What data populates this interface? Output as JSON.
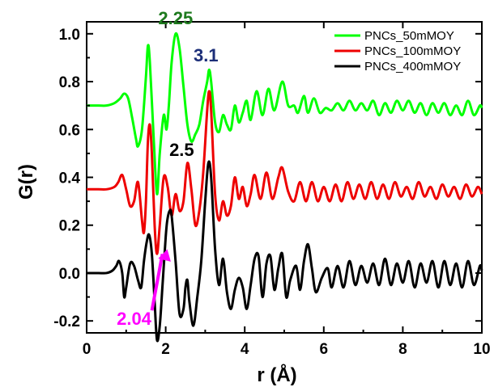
{
  "chart_data": {
    "type": "line",
    "xlabel": "r (Å)",
    "ylabel": "G(r)",
    "xlim": [
      0,
      10
    ],
    "ylim": [
      -0.25,
      1.05
    ],
    "xticks": [
      0,
      2,
      4,
      6,
      8,
      10
    ],
    "xtick_labels": [
      "0",
      "2",
      "4",
      "6",
      "8",
      "10"
    ],
    "yticks": [
      -0.2,
      0.0,
      0.2,
      0.4,
      0.6,
      0.8,
      1.0
    ],
    "ytick_labels": [
      "-0.2",
      "0.0",
      "0.2",
      "0.4",
      "0.6",
      "0.8",
      "1.0"
    ],
    "grid": false,
    "legend_position": "top-right",
    "series": [
      {
        "name": "PNCs_50mMOY",
        "color": "#00ff00",
        "points": [
          [
            0.0,
            0.7
          ],
          [
            0.3,
            0.7
          ],
          [
            0.5,
            0.7
          ],
          [
            0.7,
            0.71
          ],
          [
            0.85,
            0.73
          ],
          [
            0.95,
            0.75
          ],
          [
            1.05,
            0.73
          ],
          [
            1.15,
            0.65
          ],
          [
            1.25,
            0.56
          ],
          [
            1.3,
            0.53
          ],
          [
            1.4,
            0.6
          ],
          [
            1.5,
            0.82
          ],
          [
            1.55,
            0.95
          ],
          [
            1.6,
            0.88
          ],
          [
            1.7,
            0.55
          ],
          [
            1.78,
            0.33
          ],
          [
            1.85,
            0.5
          ],
          [
            1.95,
            0.66
          ],
          [
            2.02,
            0.6
          ],
          [
            2.08,
            0.7
          ],
          [
            2.15,
            0.88
          ],
          [
            2.25,
            1.0
          ],
          [
            2.35,
            0.94
          ],
          [
            2.45,
            0.78
          ],
          [
            2.55,
            0.62
          ],
          [
            2.65,
            0.55
          ],
          [
            2.75,
            0.58
          ],
          [
            2.85,
            0.62
          ],
          [
            2.95,
            0.72
          ],
          [
            3.05,
            0.8
          ],
          [
            3.1,
            0.85
          ],
          [
            3.15,
            0.8
          ],
          [
            3.25,
            0.63
          ],
          [
            3.35,
            0.59
          ],
          [
            3.45,
            0.66
          ],
          [
            3.55,
            0.62
          ],
          [
            3.65,
            0.6
          ],
          [
            3.75,
            0.7
          ],
          [
            3.85,
            0.63
          ],
          [
            3.95,
            0.67
          ],
          [
            4.05,
            0.72
          ],
          [
            4.15,
            0.64
          ],
          [
            4.3,
            0.76
          ],
          [
            4.45,
            0.66
          ],
          [
            4.6,
            0.77
          ],
          [
            4.75,
            0.68
          ],
          [
            4.95,
            0.8
          ],
          [
            5.1,
            0.7
          ],
          [
            5.25,
            0.7
          ],
          [
            5.35,
            0.67
          ],
          [
            5.5,
            0.74
          ],
          [
            5.6,
            0.67
          ],
          [
            5.75,
            0.73
          ],
          [
            5.9,
            0.67
          ],
          [
            6.05,
            0.69
          ],
          [
            6.2,
            0.68
          ],
          [
            6.35,
            0.71
          ],
          [
            6.5,
            0.68
          ],
          [
            6.65,
            0.72
          ],
          [
            6.8,
            0.68
          ],
          [
            6.95,
            0.71
          ],
          [
            7.1,
            0.68
          ],
          [
            7.25,
            0.72
          ],
          [
            7.4,
            0.66
          ],
          [
            7.55,
            0.71
          ],
          [
            7.7,
            0.67
          ],
          [
            7.85,
            0.72
          ],
          [
            8.0,
            0.68
          ],
          [
            8.15,
            0.72
          ],
          [
            8.3,
            0.67
          ],
          [
            8.45,
            0.71
          ],
          [
            8.6,
            0.66
          ],
          [
            8.75,
            0.71
          ],
          [
            8.9,
            0.67
          ],
          [
            9.05,
            0.71
          ],
          [
            9.2,
            0.66
          ],
          [
            9.35,
            0.7
          ],
          [
            9.5,
            0.66
          ],
          [
            9.65,
            0.72
          ],
          [
            9.8,
            0.66
          ],
          [
            9.95,
            0.7
          ],
          [
            10.0,
            0.69
          ]
        ]
      },
      {
        "name": "PNCs_100mMOY",
        "color": "#ee0000",
        "points": [
          [
            0.0,
            0.35
          ],
          [
            0.3,
            0.35
          ],
          [
            0.5,
            0.35
          ],
          [
            0.7,
            0.36
          ],
          [
            0.8,
            0.38
          ],
          [
            0.9,
            0.41
          ],
          [
            1.0,
            0.35
          ],
          [
            1.1,
            0.28
          ],
          [
            1.2,
            0.3
          ],
          [
            1.3,
            0.38
          ],
          [
            1.4,
            0.22
          ],
          [
            1.45,
            0.17
          ],
          [
            1.5,
            0.3
          ],
          [
            1.55,
            0.55
          ],
          [
            1.6,
            0.62
          ],
          [
            1.65,
            0.5
          ],
          [
            1.72,
            0.2
          ],
          [
            1.78,
            0.08
          ],
          [
            1.85,
            0.2
          ],
          [
            1.95,
            0.4
          ],
          [
            2.05,
            0.36
          ],
          [
            2.15,
            0.24
          ],
          [
            2.25,
            0.33
          ],
          [
            2.35,
            0.26
          ],
          [
            2.45,
            0.3
          ],
          [
            2.55,
            0.46
          ],
          [
            2.65,
            0.35
          ],
          [
            2.75,
            0.2
          ],
          [
            2.85,
            0.26
          ],
          [
            2.95,
            0.42
          ],
          [
            3.05,
            0.68
          ],
          [
            3.1,
            0.76
          ],
          [
            3.15,
            0.68
          ],
          [
            3.25,
            0.33
          ],
          [
            3.35,
            0.22
          ],
          [
            3.45,
            0.3
          ],
          [
            3.55,
            0.24
          ],
          [
            3.65,
            0.28
          ],
          [
            3.75,
            0.4
          ],
          [
            3.85,
            0.31
          ],
          [
            3.95,
            0.36
          ],
          [
            4.05,
            0.28
          ],
          [
            4.15,
            0.33
          ],
          [
            4.25,
            0.41
          ],
          [
            4.4,
            0.31
          ],
          [
            4.55,
            0.42
          ],
          [
            4.7,
            0.31
          ],
          [
            4.85,
            0.4
          ],
          [
            4.95,
            0.44
          ],
          [
            5.1,
            0.34
          ],
          [
            5.25,
            0.3
          ],
          [
            5.4,
            0.38
          ],
          [
            5.55,
            0.3
          ],
          [
            5.7,
            0.38
          ],
          [
            5.85,
            0.3
          ],
          [
            6.0,
            0.36
          ],
          [
            6.15,
            0.3
          ],
          [
            6.3,
            0.37
          ],
          [
            6.45,
            0.3
          ],
          [
            6.6,
            0.38
          ],
          [
            6.75,
            0.31
          ],
          [
            6.9,
            0.37
          ],
          [
            7.05,
            0.31
          ],
          [
            7.2,
            0.38
          ],
          [
            7.35,
            0.31
          ],
          [
            7.5,
            0.37
          ],
          [
            7.65,
            0.31
          ],
          [
            7.8,
            0.38
          ],
          [
            7.95,
            0.32
          ],
          [
            8.1,
            0.36
          ],
          [
            8.25,
            0.31
          ],
          [
            8.4,
            0.38
          ],
          [
            8.55,
            0.32
          ],
          [
            8.7,
            0.36
          ],
          [
            8.85,
            0.31
          ],
          [
            9.0,
            0.37
          ],
          [
            9.15,
            0.32
          ],
          [
            9.3,
            0.36
          ],
          [
            9.45,
            0.31
          ],
          [
            9.6,
            0.37
          ],
          [
            9.75,
            0.32
          ],
          [
            9.9,
            0.36
          ],
          [
            10.0,
            0.33
          ]
        ]
      },
      {
        "name": "PNCs_400mMOY",
        "color": "#000000",
        "points": [
          [
            0.0,
            0.0
          ],
          [
            0.3,
            0.0
          ],
          [
            0.5,
            0.0
          ],
          [
            0.65,
            0.01
          ],
          [
            0.75,
            0.03
          ],
          [
            0.82,
            0.05
          ],
          [
            0.9,
            0.0
          ],
          [
            0.95,
            -0.1
          ],
          [
            1.0,
            -0.06
          ],
          [
            1.1,
            0.04
          ],
          [
            1.2,
            0.03
          ],
          [
            1.3,
            -0.03
          ],
          [
            1.38,
            -0.06
          ],
          [
            1.45,
            0.05
          ],
          [
            1.52,
            0.13
          ],
          [
            1.58,
            0.16
          ],
          [
            1.65,
            0.08
          ],
          [
            1.72,
            -0.12
          ],
          [
            1.78,
            -0.28
          ],
          [
            1.85,
            -0.22
          ],
          [
            1.92,
            -0.05
          ],
          [
            2.0,
            0.15
          ],
          [
            2.04,
            0.22
          ],
          [
            2.1,
            0.26
          ],
          [
            2.15,
            0.24
          ],
          [
            2.25,
            0.05
          ],
          [
            2.35,
            -0.17
          ],
          [
            2.45,
            -0.15
          ],
          [
            2.5,
            -0.06
          ],
          [
            2.55,
            -0.03
          ],
          [
            2.6,
            -0.12
          ],
          [
            2.7,
            -0.22
          ],
          [
            2.8,
            -0.1
          ],
          [
            2.9,
            0.05
          ],
          [
            3.0,
            0.3
          ],
          [
            3.08,
            0.46
          ],
          [
            3.15,
            0.4
          ],
          [
            3.25,
            0.1
          ],
          [
            3.35,
            -0.05
          ],
          [
            3.45,
            0.06
          ],
          [
            3.55,
            -0.08
          ],
          [
            3.65,
            -0.15
          ],
          [
            3.75,
            -0.07
          ],
          [
            3.85,
            -0.02
          ],
          [
            3.95,
            -0.06
          ],
          [
            4.05,
            -0.15
          ],
          [
            4.15,
            -0.05
          ],
          [
            4.25,
            0.06
          ],
          [
            4.35,
            0.07
          ],
          [
            4.45,
            -0.1
          ],
          [
            4.55,
            0.04
          ],
          [
            4.65,
            0.07
          ],
          [
            4.75,
            -0.07
          ],
          [
            4.85,
            0.02
          ],
          [
            4.95,
            0.08
          ],
          [
            5.05,
            -0.1
          ],
          [
            5.15,
            -0.03
          ],
          [
            5.3,
            0.03
          ],
          [
            5.4,
            -0.07
          ],
          [
            5.5,
            0.05
          ],
          [
            5.6,
            0.12
          ],
          [
            5.7,
            0.02
          ],
          [
            5.8,
            -0.08
          ],
          [
            5.95,
            -0.02
          ],
          [
            6.1,
            0.02
          ],
          [
            6.2,
            -0.06
          ],
          [
            6.35,
            0.03
          ],
          [
            6.5,
            -0.06
          ],
          [
            6.65,
            0.05
          ],
          [
            6.8,
            -0.05
          ],
          [
            6.95,
            0.03
          ],
          [
            7.1,
            -0.04
          ],
          [
            7.25,
            0.04
          ],
          [
            7.4,
            -0.05
          ],
          [
            7.55,
            0.06
          ],
          [
            7.7,
            -0.05
          ],
          [
            7.85,
            0.04
          ],
          [
            8.0,
            -0.04
          ],
          [
            8.15,
            0.05
          ],
          [
            8.3,
            -0.06
          ],
          [
            8.45,
            0.04
          ],
          [
            8.6,
            -0.04
          ],
          [
            8.75,
            0.05
          ],
          [
            8.9,
            -0.06
          ],
          [
            9.05,
            0.05
          ],
          [
            9.2,
            -0.05
          ],
          [
            9.35,
            0.04
          ],
          [
            9.5,
            -0.06
          ],
          [
            9.65,
            0.05
          ],
          [
            9.8,
            -0.05
          ],
          [
            9.95,
            0.03
          ],
          [
            10.0,
            0.01
          ]
        ]
      }
    ],
    "annotations": [
      {
        "text": "2.25",
        "color": "#1e7a1e",
        "x": 2.25,
        "y": 1.0
      },
      {
        "text": "3.1",
        "color": "#1c2e78",
        "x": 3.1,
        "y": 0.85
      },
      {
        "text": "2.5",
        "color": "#000000",
        "x": 2.2,
        "y": 0.49
      },
      {
        "text": "2.04",
        "color": "#ff00ff",
        "x": 1.2,
        "y": -0.19,
        "arrow_to": [
          2.04,
          0.1
        ]
      }
    ]
  }
}
